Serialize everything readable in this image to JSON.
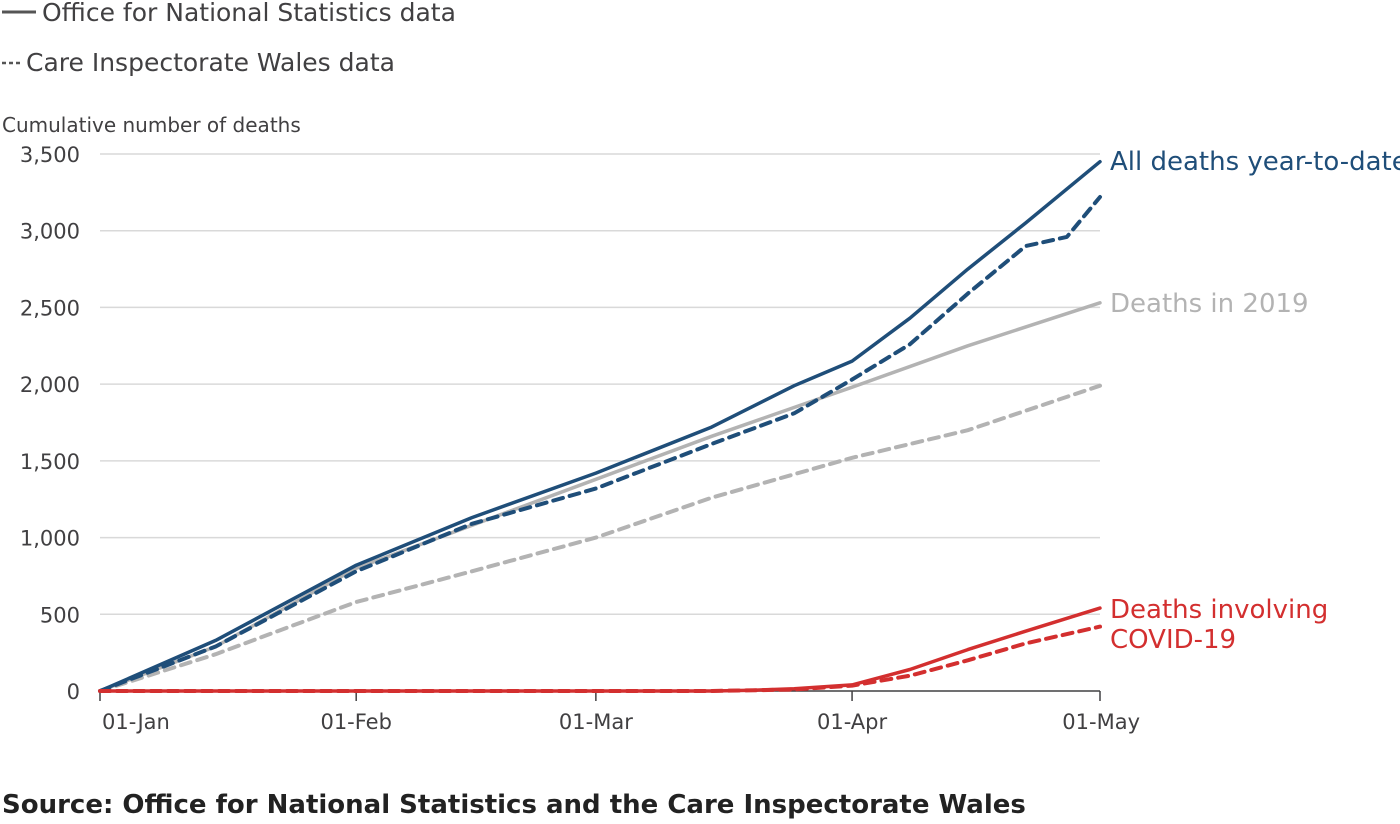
{
  "legend": {
    "solid_label": "Office for National Statistics data",
    "dashed_label": "Care Inspectorate Wales data"
  },
  "source": "Source: Office for National Statistics and the Care Inspectorate Wales",
  "colors": {
    "all_deaths": "#1f4e79",
    "deaths_2019": "#b3b3b3",
    "covid": "#d32f2f",
    "grid": "#d9d9d9",
    "axis": "#414042"
  },
  "chart_data": {
    "type": "line",
    "ylabel": "Cumulative number of deaths",
    "xlabel": "",
    "ylim": [
      0,
      3500
    ],
    "y_ticks": [
      0,
      500,
      1000,
      1500,
      2000,
      2500,
      3000,
      3500
    ],
    "y_tick_labels": [
      "0",
      "500",
      "1,000",
      "1,500",
      "2,000",
      "2,500",
      "3,000",
      "3,500"
    ],
    "x_range": [
      "2020-01-01",
      "2020-05-01"
    ],
    "x_ticks": [
      "2020-01-01",
      "2020-02-01",
      "2020-03-01",
      "2020-04-01",
      "2020-05-01"
    ],
    "x_tick_labels": [
      "01-Jan",
      "01-Feb",
      "01-Mar",
      "01-Apr",
      "01-May"
    ],
    "grid": "horizontal",
    "series": [
      {
        "key": "ons_2019",
        "name": "Deaths in 2019",
        "source": "Office for National Statistics data",
        "style": "solid",
        "color": "#b3b3b3",
        "points": [
          [
            "2020-01-01",
            0
          ],
          [
            "2020-01-15",
            290
          ],
          [
            "2020-02-01",
            800
          ],
          [
            "2020-02-15",
            1080
          ],
          [
            "2020-03-01",
            1380
          ],
          [
            "2020-03-15",
            1660
          ],
          [
            "2020-04-01",
            1980
          ],
          [
            "2020-04-15",
            2250
          ],
          [
            "2020-05-01",
            2530
          ]
        ]
      },
      {
        "key": "ciw_2019",
        "name": "",
        "source": "Care Inspectorate Wales data",
        "style": "dashed",
        "color": "#b3b3b3",
        "points": [
          [
            "2020-01-01",
            0
          ],
          [
            "2020-01-15",
            240
          ],
          [
            "2020-02-01",
            580
          ],
          [
            "2020-02-15",
            780
          ],
          [
            "2020-03-01",
            1000
          ],
          [
            "2020-03-15",
            1260
          ],
          [
            "2020-04-01",
            1520
          ],
          [
            "2020-04-15",
            1700
          ],
          [
            "2020-05-01",
            1990
          ]
        ]
      },
      {
        "key": "ons_all",
        "name": "All deaths year-to-date",
        "source": "Office for National Statistics data",
        "style": "solid",
        "color": "#1f4e79",
        "points": [
          [
            "2020-01-01",
            0
          ],
          [
            "2020-01-15",
            330
          ],
          [
            "2020-02-01",
            820
          ],
          [
            "2020-02-15",
            1130
          ],
          [
            "2020-03-01",
            1420
          ],
          [
            "2020-03-15",
            1720
          ],
          [
            "2020-03-25",
            1990
          ],
          [
            "2020-04-01",
            2150
          ],
          [
            "2020-04-08",
            2430
          ],
          [
            "2020-04-15",
            2750
          ],
          [
            "2020-04-22",
            3050
          ],
          [
            "2020-05-01",
            3450
          ]
        ]
      },
      {
        "key": "ciw_all",
        "name": "",
        "source": "Care Inspectorate Wales data",
        "style": "dashed",
        "color": "#1f4e79",
        "points": [
          [
            "2020-01-01",
            0
          ],
          [
            "2020-01-15",
            290
          ],
          [
            "2020-02-01",
            780
          ],
          [
            "2020-02-15",
            1090
          ],
          [
            "2020-03-01",
            1320
          ],
          [
            "2020-03-15",
            1610
          ],
          [
            "2020-03-25",
            1810
          ],
          [
            "2020-04-01",
            2030
          ],
          [
            "2020-04-08",
            2260
          ],
          [
            "2020-04-15",
            2590
          ],
          [
            "2020-04-22",
            2900
          ],
          [
            "2020-04-27",
            2960
          ],
          [
            "2020-05-01",
            3220
          ]
        ]
      },
      {
        "key": "ons_covid",
        "name": "Deaths involving COVID-19",
        "source": "Office for National Statistics data",
        "style": "solid",
        "color": "#d32f2f",
        "points": [
          [
            "2020-01-01",
            0
          ],
          [
            "2020-03-15",
            0
          ],
          [
            "2020-03-20",
            5
          ],
          [
            "2020-03-25",
            15
          ],
          [
            "2020-04-01",
            40
          ],
          [
            "2020-04-08",
            140
          ],
          [
            "2020-04-15",
            270
          ],
          [
            "2020-04-22",
            390
          ],
          [
            "2020-05-01",
            540
          ]
        ]
      },
      {
        "key": "ciw_covid",
        "name": "",
        "source": "Care Inspectorate Wales data",
        "style": "dashed",
        "color": "#d32f2f",
        "points": [
          [
            "2020-01-01",
            0
          ],
          [
            "2020-03-15",
            0
          ],
          [
            "2020-03-25",
            10
          ],
          [
            "2020-04-01",
            35
          ],
          [
            "2020-04-08",
            100
          ],
          [
            "2020-04-15",
            200
          ],
          [
            "2020-04-22",
            310
          ],
          [
            "2020-05-01",
            420
          ]
        ]
      }
    ],
    "series_labels": {
      "all_deaths": "All deaths year-to-date",
      "deaths_2019": "Deaths in 2019",
      "covid_line1": "Deaths involving",
      "covid_line2": "COVID-19"
    }
  }
}
